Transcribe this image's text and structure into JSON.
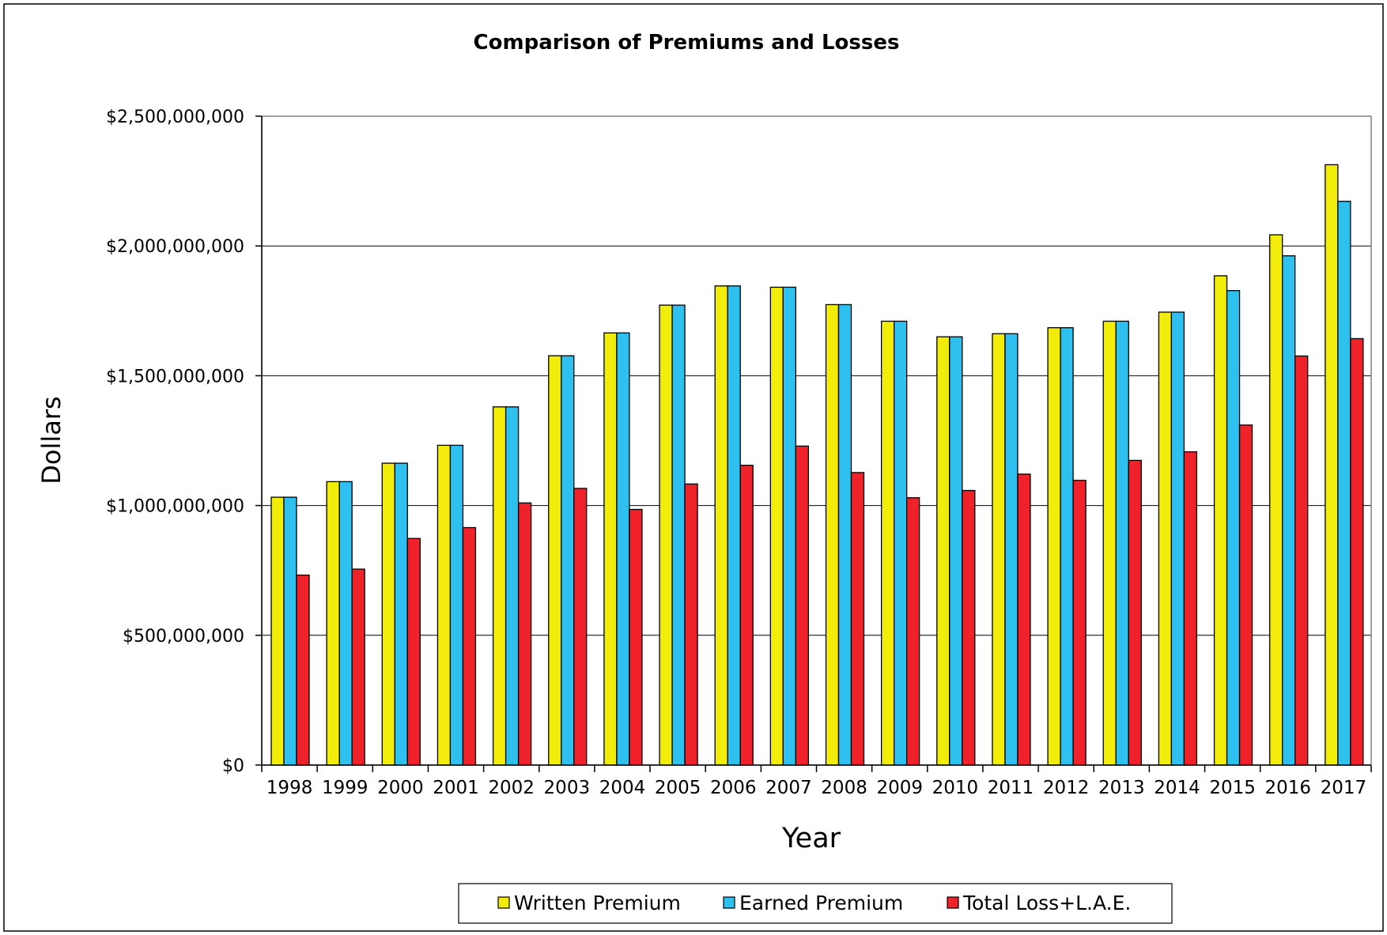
{
  "chart_data": {
    "type": "bar",
    "title": "Comparison of Premiums and Losses",
    "xlabel": "Year",
    "ylabel": "Dollars",
    "ylim": [
      0,
      2500000000
    ],
    "y_ticks": [
      {
        "value": 0,
        "label": "$0"
      },
      {
        "value": 500000000,
        "label": "$500,000,000"
      },
      {
        "value": 1000000000,
        "label": "$1,000,000,000"
      },
      {
        "value": 1500000000,
        "label": "$1,500,000,000"
      },
      {
        "value": 2000000000,
        "label": "$2,000,000,000"
      },
      {
        "value": 2500000000,
        "label": "$2,500,000,000"
      }
    ],
    "grid": true,
    "legend_position": "bottom-center",
    "categories": [
      "1998",
      "1999",
      "2000",
      "2001",
      "2002",
      "2003",
      "2004",
      "2005",
      "2006",
      "2007",
      "2008",
      "2009",
      "2010",
      "2011",
      "2012",
      "2013",
      "2014",
      "2015",
      "2016",
      "2017"
    ],
    "series": [
      {
        "name": "Written Premium",
        "color": "#f2ec0a",
        "values": [
          1032000000,
          1092000000,
          1163000000,
          1232000000,
          1380000000,
          1577000000,
          1665000000,
          1772000000,
          1846000000,
          1841000000,
          1774000000,
          1710000000,
          1650000000,
          1662000000,
          1685000000,
          1710000000,
          1745000000,
          1885000000,
          2043000000,
          2313000000
        ]
      },
      {
        "name": "Earned Premium",
        "color": "#2ec0ee",
        "values": [
          1032000000,
          1092000000,
          1163000000,
          1232000000,
          1380000000,
          1577000000,
          1665000000,
          1772000000,
          1846000000,
          1841000000,
          1774000000,
          1710000000,
          1650000000,
          1662000000,
          1685000000,
          1710000000,
          1745000000,
          1828000000,
          1962000000,
          2172000000
        ]
      },
      {
        "name": "Total Loss+L.A.E.",
        "color": "#ee2228",
        "values": [
          732000000,
          755000000,
          873000000,
          915000000,
          1010000000,
          1066000000,
          985000000,
          1083000000,
          1155000000,
          1229000000,
          1127000000,
          1030000000,
          1058000000,
          1121000000,
          1097000000,
          1174000000,
          1207000000,
          1310000000,
          1576000000,
          1643000000
        ]
      }
    ]
  }
}
